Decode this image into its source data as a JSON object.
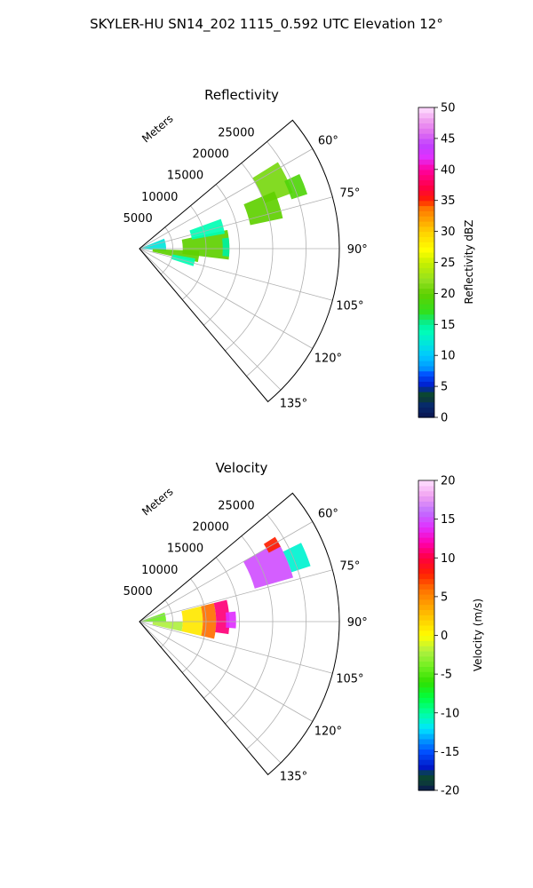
{
  "figure": {
    "suptitle": "SKYLER-HU  SN14_202  1115_0.592 UTC Elevation 12°"
  },
  "chart_data": [
    {
      "type": "heatmap",
      "projection": "polar-sector",
      "title": "Reflectivity",
      "radial_label": "Meters",
      "radial_ticks": [
        5000,
        10000,
        15000,
        20000,
        25000
      ],
      "radial_tick_labels": [
        "5000",
        "10000",
        "15000",
        "20000",
        "25000"
      ],
      "radial_range": [
        0,
        30000
      ],
      "azimuth_range_deg": [
        50,
        140
      ],
      "azimuth_ticks_deg": [
        60,
        75,
        90,
        105,
        120,
        135
      ],
      "azimuth_tick_labels": [
        "60°",
        "75°",
        "90°",
        "105°",
        "120°",
        "135°"
      ],
      "grid": true,
      "colorbar": {
        "label": "Reflectivity dBZ",
        "range": [
          0,
          50
        ],
        "ticks": [
          0,
          5,
          10,
          15,
          20,
          25,
          30,
          35,
          40,
          45,
          50
        ],
        "tick_labels": [
          "0",
          "5",
          "10",
          "15",
          "20",
          "25",
          "30",
          "35",
          "40",
          "45",
          "50"
        ]
      },
      "echo_regions": [
        {
          "az": [
            68,
            95
          ],
          "r": [
            0,
            4000
          ],
          "value": 12
        },
        {
          "az": [
            92,
            103
          ],
          "r": [
            2000,
            9000
          ],
          "value": 20
        },
        {
          "az": [
            78,
            97
          ],
          "r": [
            6500,
            13500
          ],
          "value": 20
        },
        {
          "az": [
            70,
            80
          ],
          "r": [
            8000,
            13000
          ],
          "value": 14
        },
        {
          "az": [
            100,
            108
          ],
          "r": [
            5000,
            8500
          ],
          "value": 14
        },
        {
          "az": [
            83,
            95
          ],
          "r": [
            12500,
            13500
          ],
          "value": 15
        },
        {
          "az": [
            58,
            70
          ],
          "r": [
            20000,
            24500
          ],
          "value": 21
        },
        {
          "az": [
            67,
            78
          ],
          "r": [
            17000,
            22000
          ],
          "value": 20
        },
        {
          "az": [
            65,
            72
          ],
          "r": [
            24000,
            26500
          ],
          "value": 19
        }
      ]
    },
    {
      "type": "heatmap",
      "projection": "polar-sector",
      "title": "Velocity",
      "radial_label": "Meters",
      "radial_ticks": [
        5000,
        10000,
        15000,
        20000,
        25000
      ],
      "radial_tick_labels": [
        "5000",
        "10000",
        "15000",
        "20000",
        "25000"
      ],
      "radial_range": [
        0,
        30000
      ],
      "azimuth_range_deg": [
        50,
        140
      ],
      "azimuth_ticks_deg": [
        60,
        75,
        90,
        105,
        120,
        135
      ],
      "azimuth_tick_labels": [
        "60°",
        "75°",
        "90°",
        "105°",
        "120°",
        "135°"
      ],
      "grid": true,
      "colorbar": {
        "label": "Velocity (m/s)",
        "range": [
          -20,
          20
        ],
        "ticks": [
          -20,
          -15,
          -10,
          -5,
          0,
          5,
          10,
          15,
          20
        ],
        "tick_labels": [
          "-20",
          "-15",
          "-10",
          "-5",
          "0",
          "5",
          "10",
          "15",
          "20"
        ]
      },
      "echo_regions": [
        {
          "az": [
            70,
            92
          ],
          "r": [
            0,
            4000
          ],
          "value": -4
        },
        {
          "az": [
            90,
            103
          ],
          "r": [
            2000,
            6500
          ],
          "value": -2
        },
        {
          "az": [
            76,
            103
          ],
          "r": [
            6500,
            9500
          ],
          "value": 1
        },
        {
          "az": [
            76,
            103
          ],
          "r": [
            9500,
            11500
          ],
          "value": 6
        },
        {
          "az": [
            76,
            98
          ],
          "r": [
            11500,
            13500
          ],
          "value": 11
        },
        {
          "az": [
            84,
            94
          ],
          "r": [
            13000,
            14500
          ],
          "value": 14
        },
        {
          "az": [
            60,
            74
          ],
          "r": [
            18000,
            24000
          ],
          "value": 15
        },
        {
          "az": [
            64,
            72
          ],
          "r": [
            24000,
            27000
          ],
          "value": -11
        },
        {
          "az": [
            58,
            62
          ],
          "r": [
            22000,
            24000
          ],
          "value": 8
        }
      ]
    }
  ]
}
